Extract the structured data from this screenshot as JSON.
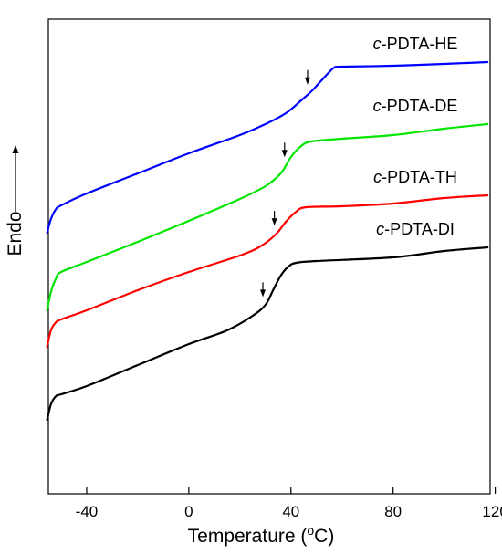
{
  "chart_data": {
    "type": "line",
    "title": "",
    "xlabel": "Temperature (°C)",
    "xlabel_main": "Temperature (",
    "xlabel_sup": "o",
    "xlabel_end": "C)",
    "ylabel": "Endo",
    "xlim": [
      -55,
      118
    ],
    "xticks": [
      -40,
      0,
      40,
      80,
      120
    ],
    "yticks_shown": false,
    "grid": false,
    "legend": "labels-on-curves",
    "series": [
      {
        "name": "c-PDTA-HE",
        "label_prefix": "c",
        "label_rest": "-PDTA-HE",
        "color": "#0000ff",
        "arrow_x": 46.5,
        "points": [
          [
            -55.5,
            255
          ],
          [
            -54,
            240
          ],
          [
            -52,
            229
          ],
          [
            -50,
            225
          ],
          [
            -40,
            212
          ],
          [
            -20,
            190
          ],
          [
            0,
            168
          ],
          [
            20,
            148
          ],
          [
            30,
            136
          ],
          [
            38,
            124
          ],
          [
            44,
            110
          ],
          [
            48,
            100
          ],
          [
            52,
            88
          ],
          [
            55,
            79
          ],
          [
            57,
            74
          ],
          [
            60,
            73
          ],
          [
            80,
            72
          ],
          [
            100,
            70
          ],
          [
            117,
            68
          ]
        ]
      },
      {
        "name": "c-PDTA-DE",
        "label_prefix": "c",
        "label_rest": "-PDTA-DE",
        "color": "#00e600",
        "arrow_x": 37.5,
        "points": [
          [
            -55.5,
            340
          ],
          [
            -54,
            320
          ],
          [
            -52,
            305
          ],
          [
            -50,
            298
          ],
          [
            -40,
            287
          ],
          [
            -20,
            265
          ],
          [
            0,
            242
          ],
          [
            20,
            218
          ],
          [
            30,
            204
          ],
          [
            36,
            190
          ],
          [
            40,
            172
          ],
          [
            44,
            160
          ],
          [
            48,
            155
          ],
          [
            60,
            152
          ],
          [
            80,
            148
          ],
          [
            100,
            141
          ],
          [
            117,
            136
          ]
        ]
      },
      {
        "name": "c-PDTA-TH",
        "label_prefix": "c",
        "label_rest": "-PDTA-TH",
        "color": "#ff0000",
        "arrow_x": 33.5,
        "points": [
          [
            -55.5,
            380
          ],
          [
            -54,
            362
          ],
          [
            -52,
            353
          ],
          [
            -50,
            350
          ],
          [
            -40,
            340
          ],
          [
            -20,
            318
          ],
          [
            0,
            298
          ],
          [
            20,
            280
          ],
          [
            28,
            270
          ],
          [
            34,
            257
          ],
          [
            38,
            243
          ],
          [
            42,
            232
          ],
          [
            46,
            227
          ],
          [
            60,
            226
          ],
          [
            80,
            223
          ],
          [
            100,
            217
          ],
          [
            117,
            214
          ]
        ]
      },
      {
        "name": "c-PDTA-DI",
        "label_prefix": "c",
        "label_rest": "-PDTA-DI",
        "color": "#000000",
        "arrow_x": 29,
        "points": [
          [
            -55.5,
            460
          ],
          [
            -54,
            443
          ],
          [
            -52,
            434
          ],
          [
            -50,
            432
          ],
          [
            -40,
            423
          ],
          [
            -20,
            400
          ],
          [
            0,
            377
          ],
          [
            15,
            362
          ],
          [
            25,
            346
          ],
          [
            30,
            334
          ],
          [
            33,
            318
          ],
          [
            36,
            302
          ],
          [
            39,
            292
          ],
          [
            42,
            288
          ],
          [
            50,
            286
          ],
          [
            80,
            282
          ],
          [
            100,
            275
          ],
          [
            117,
            271
          ]
        ]
      }
    ]
  }
}
